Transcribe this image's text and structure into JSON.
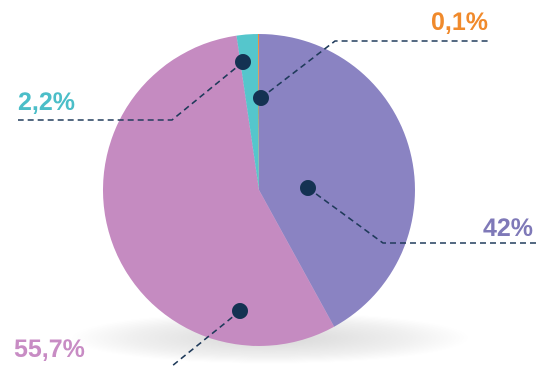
{
  "chart_data": {
    "type": "pie",
    "start_angle_deg": 0,
    "direction": "clockwise",
    "slices": [
      {
        "label": "42%",
        "value": 42.0,
        "color": "#8a83c2",
        "label_color": "#7f79b8"
      },
      {
        "label": "55,7%",
        "value": 55.7,
        "color": "#c58bc1",
        "label_color": "#c88cc4"
      },
      {
        "label": "2,2%",
        "value": 2.2,
        "color": "#55c6cc",
        "label_color": "#4bbec8"
      },
      {
        "label": "0,1%",
        "value": 0.1,
        "color": "#f08a2c",
        "label_color": "#f08a2c"
      }
    ],
    "leader_color": "#1f3a5a",
    "dot_color": "#143252"
  }
}
